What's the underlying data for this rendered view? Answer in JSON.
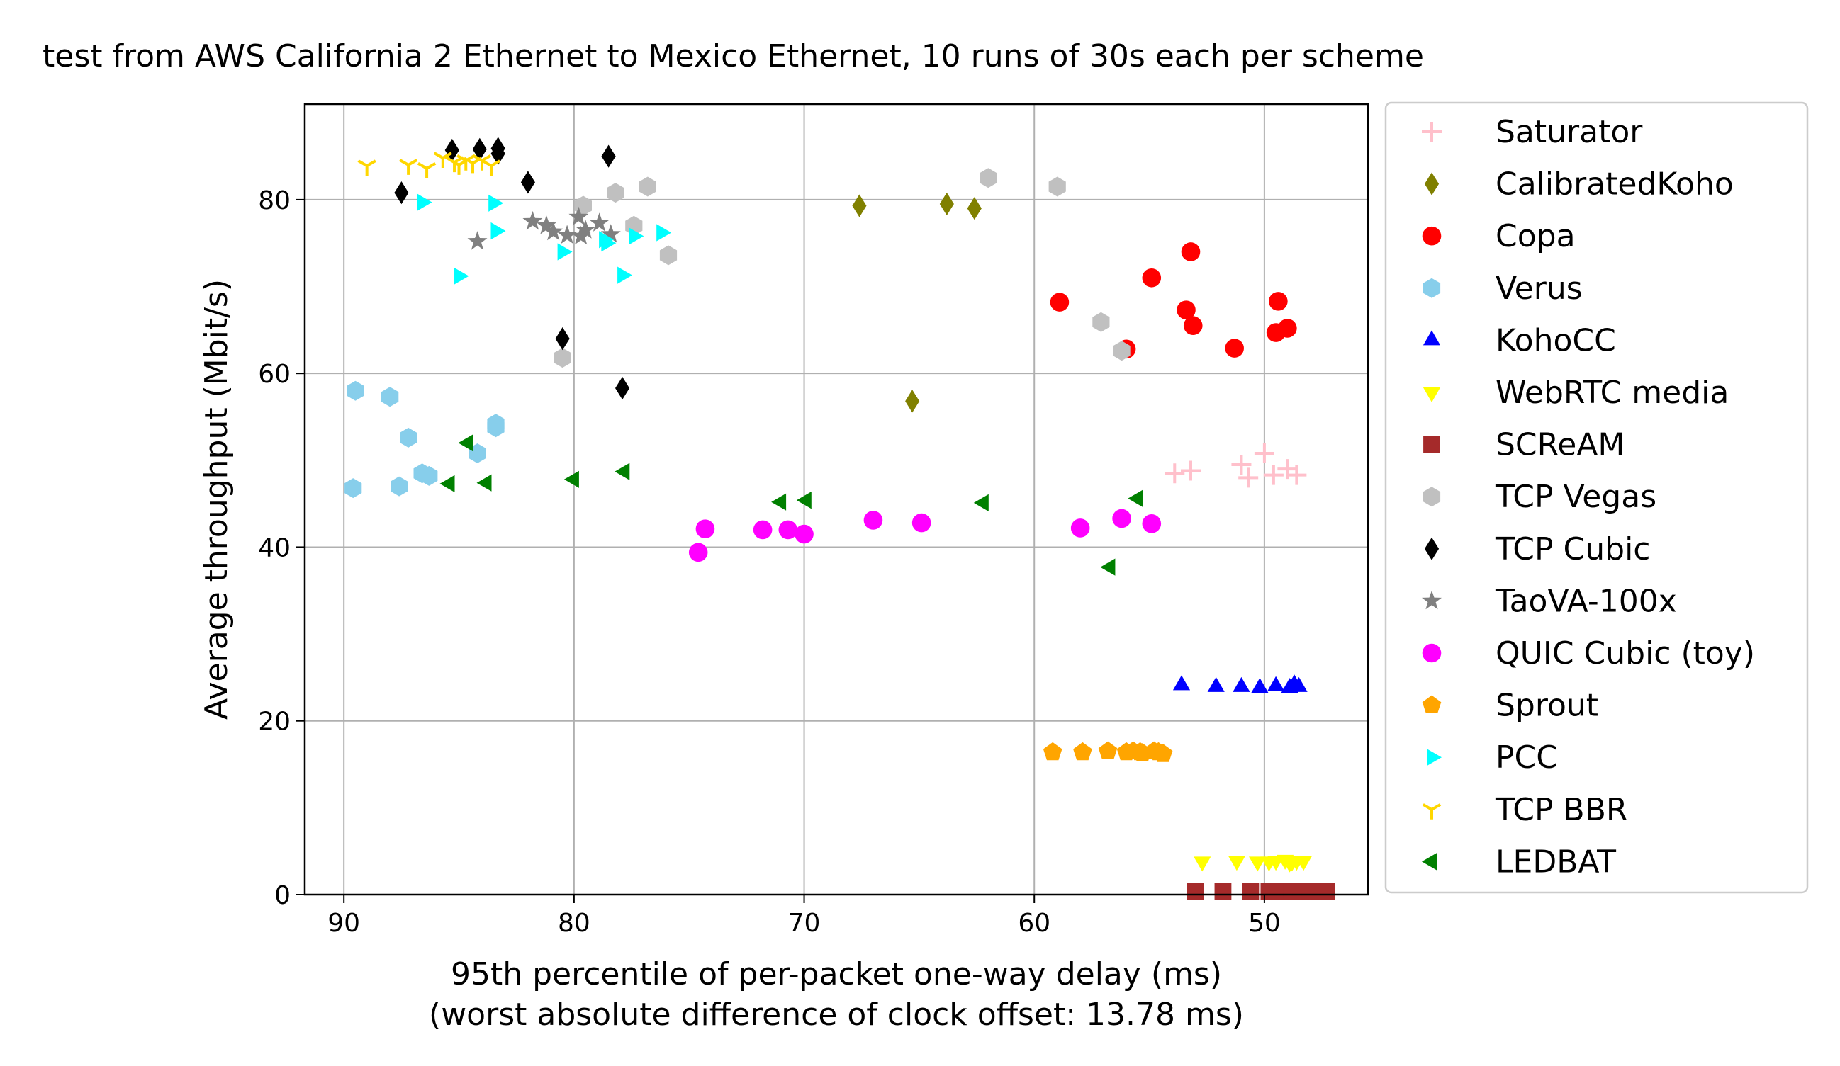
{
  "chart_data": {
    "type": "scatter",
    "title": "test from AWS California 2 Ethernet to Mexico Ethernet, 10 runs of 30s each per scheme",
    "xlabel": "95th percentile of per-packet one-way delay (ms)",
    "xlabel2": "(worst absolute difference of clock offset: 13.78 ms)",
    "ylabel": "Average throughput (Mbit/s)",
    "xlim": [
      91.7,
      45.5
    ],
    "ylim": [
      0,
      91
    ],
    "x_reversed": true,
    "x_ticks": [
      90,
      80,
      70,
      60,
      50
    ],
    "y_ticks": [
      0,
      20,
      40,
      60,
      80
    ],
    "grid": true,
    "legend_position": "outside-right",
    "series": [
      {
        "name": "Saturator",
        "marker": "plus",
        "color": "#ffc0cb",
        "points": [
          [
            53.9,
            48.5
          ],
          [
            53.2,
            48.8
          ],
          [
            51.0,
            49.5
          ],
          [
            50.7,
            48.0
          ],
          [
            50.0,
            50.8
          ],
          [
            49.6,
            48.3
          ],
          [
            49.0,
            49.0
          ],
          [
            48.6,
            48.3
          ]
        ]
      },
      {
        "name": "CalibratedKoho",
        "marker": "diamond",
        "color": "#808000",
        "points": [
          [
            67.6,
            79.3
          ],
          [
            63.8,
            79.5
          ],
          [
            62.6,
            79.0
          ],
          [
            65.3,
            56.8
          ]
        ]
      },
      {
        "name": "Copa",
        "marker": "circle",
        "color": "#ff0000",
        "points": [
          [
            53.2,
            74.0
          ],
          [
            54.9,
            71.0
          ],
          [
            58.9,
            68.2
          ],
          [
            53.4,
            67.3
          ],
          [
            53.1,
            65.5
          ],
          [
            56.0,
            62.8
          ],
          [
            51.3,
            62.9
          ],
          [
            49.4,
            68.3
          ],
          [
            49.5,
            64.7
          ],
          [
            49.0,
            65.2
          ]
        ]
      },
      {
        "name": "Verus",
        "marker": "hexagon",
        "color": "#87ceeb",
        "points": [
          [
            89.5,
            58.0
          ],
          [
            88.0,
            57.3
          ],
          [
            87.2,
            52.6
          ],
          [
            86.6,
            48.5
          ],
          [
            86.3,
            48.2
          ],
          [
            84.2,
            50.8
          ],
          [
            83.4,
            53.8
          ],
          [
            83.4,
            54.2
          ],
          [
            89.6,
            46.8
          ],
          [
            87.6,
            47.0
          ]
        ]
      },
      {
        "name": "KohoCC",
        "marker": "triangle-up",
        "color": "#0000ff",
        "points": [
          [
            53.6,
            24.1
          ],
          [
            52.1,
            23.9
          ],
          [
            51.0,
            23.9
          ],
          [
            50.2,
            23.8
          ],
          [
            49.5,
            24.0
          ],
          [
            48.7,
            24.2
          ],
          [
            48.5,
            23.9
          ],
          [
            48.9,
            23.8
          ]
        ]
      },
      {
        "name": "WebRTC media",
        "marker": "triangle-down",
        "color": "#ffff00",
        "points": [
          [
            52.7,
            3.8
          ],
          [
            51.2,
            3.9
          ],
          [
            50.3,
            3.8
          ],
          [
            49.5,
            3.9
          ],
          [
            49.1,
            4.0
          ],
          [
            48.8,
            3.8
          ],
          [
            48.3,
            3.9
          ],
          [
            48.9,
            3.7
          ],
          [
            49.8,
            3.8
          ],
          [
            48.6,
            3.9
          ]
        ]
      },
      {
        "name": "SCReAM",
        "marker": "square",
        "color": "#a52a2a",
        "points": [
          [
            53.0,
            0.4
          ],
          [
            51.8,
            0.4
          ],
          [
            50.6,
            0.4
          ],
          [
            49.8,
            0.4
          ],
          [
            49.2,
            0.4
          ],
          [
            48.8,
            0.4
          ],
          [
            48.4,
            0.4
          ],
          [
            48.0,
            0.4
          ],
          [
            47.6,
            0.4
          ],
          [
            47.3,
            0.4
          ]
        ]
      },
      {
        "name": "TCP Vegas",
        "marker": "hexagon",
        "color": "#c0c0c0",
        "points": [
          [
            62.0,
            82.5
          ],
          [
            59.0,
            81.5
          ],
          [
            76.8,
            81.5
          ],
          [
            78.2,
            80.8
          ],
          [
            79.6,
            79.3
          ],
          [
            77.4,
            77.0
          ],
          [
            75.9,
            73.6
          ],
          [
            57.1,
            65.9
          ],
          [
            56.2,
            62.6
          ],
          [
            80.5,
            61.8
          ]
        ]
      },
      {
        "name": "TCP Cubic",
        "marker": "diamond",
        "color": "#000000",
        "points": [
          [
            85.3,
            85.7
          ],
          [
            84.1,
            85.8
          ],
          [
            83.3,
            85.9
          ],
          [
            83.3,
            85.3
          ],
          [
            78.5,
            85.0
          ],
          [
            82.0,
            82.0
          ],
          [
            87.5,
            80.8
          ],
          [
            80.5,
            64.0
          ],
          [
            77.9,
            58.3
          ]
        ]
      },
      {
        "name": "TaoVA-100x",
        "marker": "star",
        "color": "#808080",
        "points": [
          [
            81.8,
            77.5
          ],
          [
            81.2,
            77.0
          ],
          [
            80.9,
            76.3
          ],
          [
            80.3,
            75.9
          ],
          [
            79.8,
            78.0
          ],
          [
            79.5,
            76.5
          ],
          [
            78.9,
            77.3
          ],
          [
            78.4,
            76.0
          ],
          [
            84.2,
            75.2
          ],
          [
            79.7,
            75.8
          ]
        ]
      },
      {
        "name": "QUIC Cubic (toy)",
        "marker": "circle",
        "color": "#ff00ff",
        "points": [
          [
            74.6,
            39.4
          ],
          [
            74.3,
            42.1
          ],
          [
            71.8,
            42.0
          ],
          [
            70.7,
            42.0
          ],
          [
            70.0,
            41.5
          ],
          [
            67.0,
            43.1
          ],
          [
            64.9,
            42.8
          ],
          [
            58.0,
            42.2
          ],
          [
            56.2,
            43.3
          ],
          [
            54.9,
            42.7
          ]
        ]
      },
      {
        "name": "Sprout",
        "marker": "pentagon",
        "color": "#ffa500",
        "points": [
          [
            59.2,
            16.4
          ],
          [
            57.9,
            16.4
          ],
          [
            56.8,
            16.5
          ],
          [
            56.0,
            16.4
          ],
          [
            55.7,
            16.5
          ],
          [
            55.3,
            16.3
          ],
          [
            54.6,
            16.4
          ],
          [
            54.4,
            16.2
          ],
          [
            55.4,
            16.4
          ],
          [
            54.8,
            16.5
          ]
        ]
      },
      {
        "name": "PCC",
        "marker": "triangle-right",
        "color": "#00ffff",
        "points": [
          [
            86.6,
            79.7
          ],
          [
            83.5,
            79.6
          ],
          [
            83.4,
            76.4
          ],
          [
            80.5,
            74.0
          ],
          [
            78.7,
            75.4
          ],
          [
            78.6,
            75.0
          ],
          [
            77.4,
            75.8
          ],
          [
            76.2,
            76.2
          ],
          [
            85.0,
            71.2
          ],
          [
            77.9,
            71.3
          ]
        ]
      },
      {
        "name": "TCP BBR",
        "marker": "tri-down",
        "color": "#ffd700",
        "points": [
          [
            89.0,
            83.9
          ],
          [
            87.2,
            84.0
          ],
          [
            86.4,
            83.6
          ],
          [
            85.7,
            84.8
          ],
          [
            85.2,
            84.3
          ],
          [
            84.7,
            84.5
          ],
          [
            84.4,
            84.2
          ],
          [
            84.0,
            84.5
          ],
          [
            83.6,
            83.9
          ],
          [
            85.0,
            84.0
          ]
        ]
      },
      {
        "name": "LEDBAT",
        "marker": "triangle-left",
        "color": "#008000",
        "points": [
          [
            84.6,
            52.0
          ],
          [
            85.4,
            47.3
          ],
          [
            83.8,
            47.4
          ],
          [
            80.0,
            47.8
          ],
          [
            77.8,
            48.7
          ],
          [
            71.0,
            45.2
          ],
          [
            69.9,
            45.4
          ],
          [
            62.2,
            45.1
          ],
          [
            55.5,
            45.6
          ],
          [
            56.7,
            37.7
          ]
        ]
      }
    ]
  }
}
